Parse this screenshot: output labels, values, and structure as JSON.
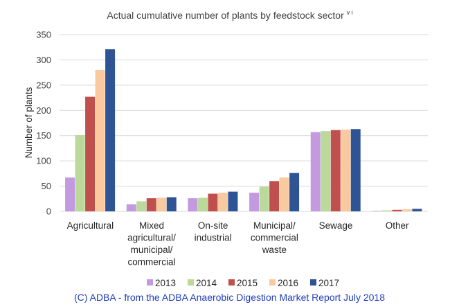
{
  "chart_data": {
    "type": "bar",
    "title": "Actual cumulative number of plants by feedstock sector",
    "title_superscript": "v i",
    "xlabel": "",
    "ylabel": "Number of plants",
    "ylim": [
      0,
      350
    ],
    "yticks": [
      0,
      50,
      100,
      150,
      200,
      250,
      300,
      350
    ],
    "grid": true,
    "legend_position": "bottom",
    "categories": [
      [
        "Agricultural"
      ],
      [
        "Mixed",
        "agricultural/",
        "municipal/",
        "commercial"
      ],
      [
        "On-site",
        "industrial"
      ],
      [
        "Municipal/",
        "commercial",
        "waste"
      ],
      [
        "Sewage"
      ],
      [
        "Other"
      ]
    ],
    "series": [
      {
        "name": "2013",
        "color": "#c39ae0",
        "values": [
          67,
          14,
          26,
          37,
          157,
          1
        ]
      },
      {
        "name": "2014",
        "color": "#bcd99c",
        "values": [
          151,
          20,
          27,
          49,
          159,
          2
        ]
      },
      {
        "name": "2015",
        "color": "#c0504d",
        "values": [
          227,
          26,
          35,
          60,
          161,
          3
        ]
      },
      {
        "name": "2016",
        "color": "#f9c9a0",
        "values": [
          280,
          27,
          37,
          67,
          162,
          4
        ]
      },
      {
        "name": "2017",
        "color": "#2f5496",
        "values": [
          321,
          28,
          39,
          76,
          163,
          5
        ]
      }
    ]
  },
  "footer": {
    "copyright": "(C) ADBA - from the ADBA Anaerobic Digestion Market Report July 2018"
  }
}
